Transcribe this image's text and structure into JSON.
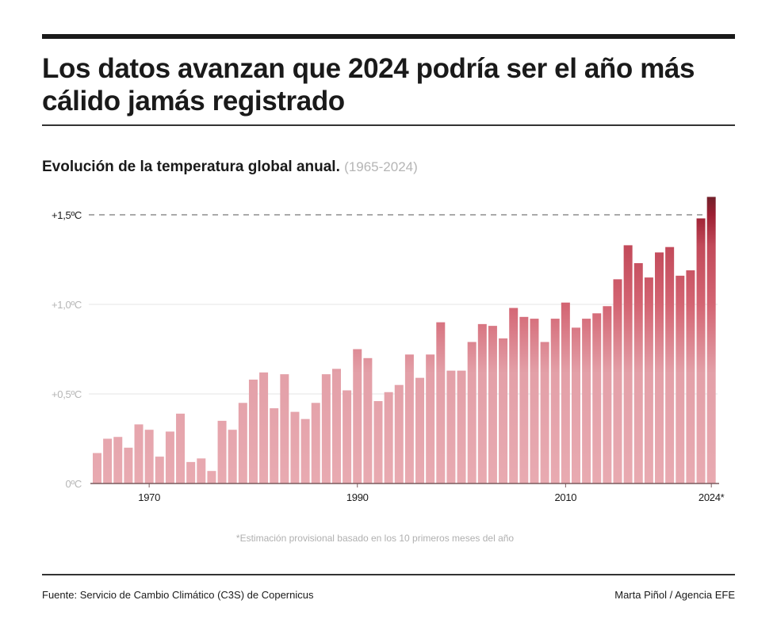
{
  "header": {
    "headline": "Los datos avanzan que 2024 podría ser el año más cálido jamás registrado",
    "subtitle": "Evolución de la temperatura global anual.",
    "subtitle_range": "(1965-2024)"
  },
  "footer": {
    "note": "*Estimación provisional basado en los 10 primeros meses del año",
    "source": "Fuente: Servicio de Cambio Climático (C3S) de Copernicus",
    "credit": "Marta Piñol / Agencia EFE"
  },
  "colors": {
    "bar_light": "#e8a9b0",
    "bar_mid": "#d36472",
    "bar_dark": "#9c1f32",
    "bar_darkest": "#6e1f2a",
    "grid": "#e4e4e4",
    "axis": "#7a5a5e",
    "threshold": "#555555"
  },
  "chart_data": {
    "type": "bar",
    "title": "Evolución de la temperatura global anual.",
    "subtitle": "(1965-2024)",
    "xlabel": "",
    "ylabel": "",
    "unit": "°C",
    "ylim": [
      0,
      1.6
    ],
    "grid": true,
    "legend": "none",
    "x": [
      1965,
      1966,
      1967,
      1968,
      1969,
      1970,
      1971,
      1972,
      1973,
      1974,
      1975,
      1976,
      1977,
      1978,
      1979,
      1980,
      1981,
      1982,
      1983,
      1984,
      1985,
      1986,
      1987,
      1988,
      1989,
      1990,
      1991,
      1992,
      1993,
      1994,
      1995,
      1996,
      1997,
      1998,
      1999,
      2000,
      2001,
      2002,
      2003,
      2004,
      2005,
      2006,
      2007,
      2008,
      2009,
      2010,
      2011,
      2012,
      2013,
      2014,
      2015,
      2016,
      2017,
      2018,
      2019,
      2020,
      2021,
      2022,
      2023,
      2024
    ],
    "values": [
      0.17,
      0.25,
      0.26,
      0.2,
      0.33,
      0.3,
      0.15,
      0.29,
      0.39,
      0.12,
      0.14,
      0.07,
      0.35,
      0.3,
      0.45,
      0.58,
      0.62,
      0.42,
      0.61,
      0.4,
      0.36,
      0.45,
      0.61,
      0.64,
      0.52,
      0.75,
      0.7,
      0.46,
      0.51,
      0.55,
      0.72,
      0.59,
      0.72,
      0.9,
      0.63,
      0.63,
      0.79,
      0.89,
      0.88,
      0.81,
      0.98,
      0.93,
      0.92,
      0.79,
      0.92,
      1.01,
      0.87,
      0.92,
      0.95,
      0.99,
      1.14,
      1.33,
      1.23,
      1.15,
      1.29,
      1.32,
      1.16,
      1.19,
      1.48,
      1.6
    ],
    "y_ticks": [
      {
        "value": 0,
        "label": "0ºC"
      },
      {
        "value": 0.5,
        "label": "+0,5ºC"
      },
      {
        "value": 1.0,
        "label": "+1,0ºC"
      },
      {
        "value": 1.5,
        "label": "+1,5ºC",
        "threshold": true
      }
    ],
    "x_ticks": [
      {
        "value": 1970,
        "label": "1970"
      },
      {
        "value": 1990,
        "label": "1990"
      },
      {
        "value": 2010,
        "label": "2010"
      },
      {
        "value": 2024,
        "label": "2024*"
      }
    ],
    "annotations": [
      "Línea discontinua en +1,5ºC",
      "*Estimación provisional basado en los 10 primeros meses del año"
    ]
  }
}
